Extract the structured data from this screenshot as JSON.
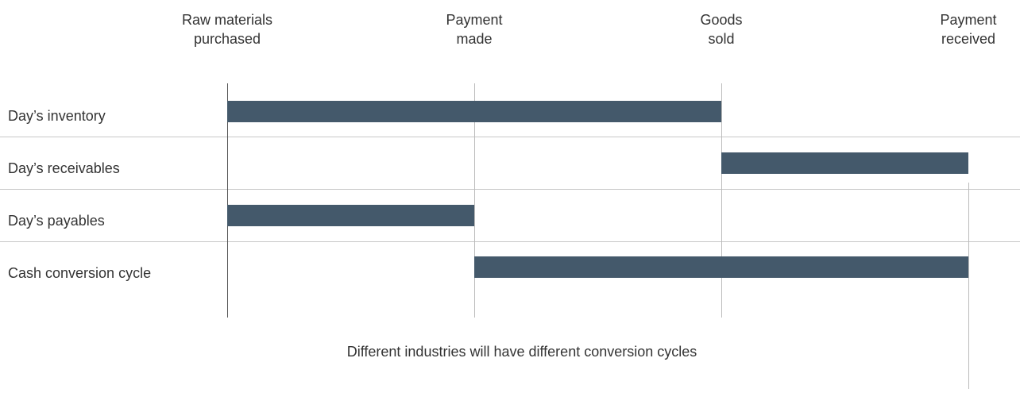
{
  "milestones": [
    [
      "Raw materials",
      "purchased"
    ],
    [
      "Payment",
      "made"
    ],
    [
      "Goods",
      "sold"
    ],
    [
      "Payment",
      "received"
    ]
  ],
  "rows": [
    "Day’s inventory",
    "Day’s receivables",
    "Day’s payables",
    "Cash conversion cycle"
  ],
  "note": "Different industries will have different conversion cycles"
}
